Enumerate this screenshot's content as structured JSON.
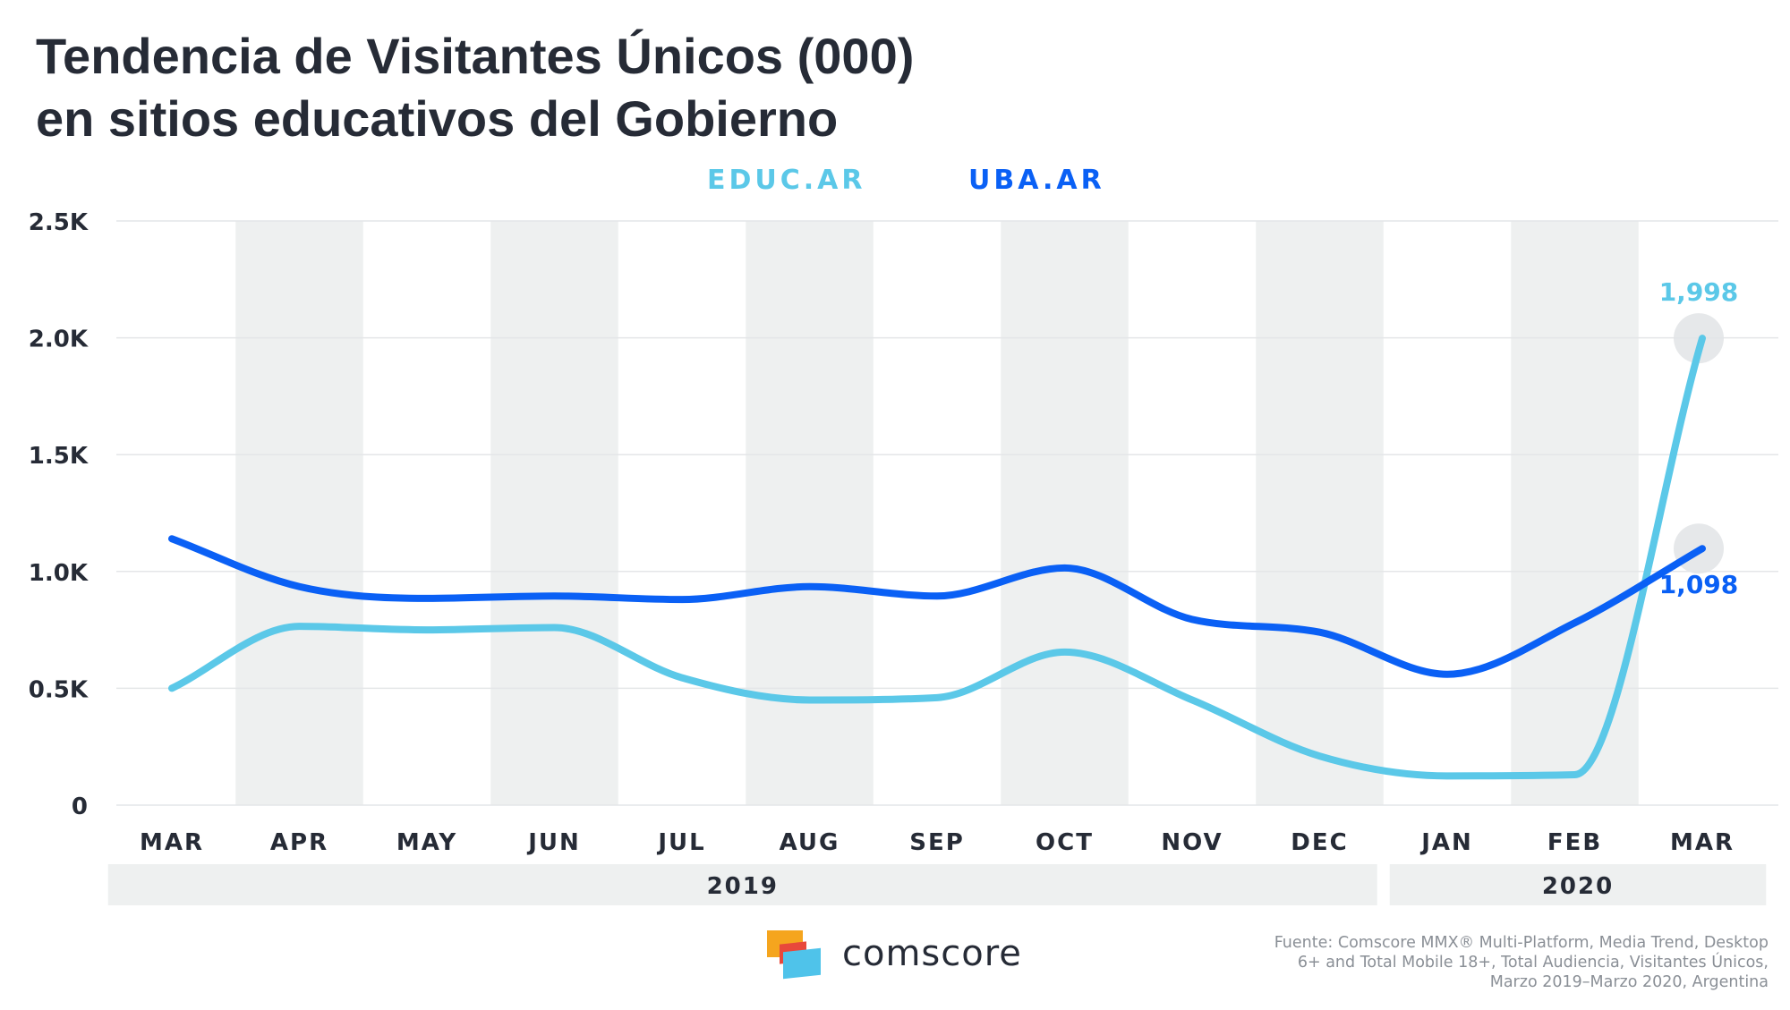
{
  "title": {
    "line1": "Tendencia de Visitantes Únicos (000)",
    "line2": "en sitios educativos del Gobierno"
  },
  "brand": {
    "name": "comscore"
  },
  "source": "Fuente: Comscore MMX® Multi-Platform, Media Trend, Desktop 6+ and Total Mobile 18+, Total Audiencia, Visitantes Únicos, Marzo 2019–Marzo 2020, Argentina",
  "colors": {
    "educ": "#5bc8e8",
    "uba": "#0a60f5",
    "band": "#eef0f0",
    "grid": "#e4e6e8",
    "text": "#262b36"
  },
  "chart_data": {
    "type": "line",
    "categories": [
      "MAR",
      "APR",
      "MAY",
      "JUN",
      "JUL",
      "AUG",
      "SEP",
      "OCT",
      "NOV",
      "DEC",
      "JAN",
      "FEB",
      "MAR"
    ],
    "year_groups": [
      {
        "label": "2019",
        "from": 0,
        "to": 9
      },
      {
        "label": "2020",
        "from": 10,
        "to": 12
      }
    ],
    "ylim": [
      0,
      2500
    ],
    "y_ticks": [
      {
        "value": 0,
        "label": "0"
      },
      {
        "value": 500,
        "label": "0.5K"
      },
      {
        "value": 1000,
        "label": "1.0K"
      },
      {
        "value": 1500,
        "label": "1.5K"
      },
      {
        "value": 2000,
        "label": "2.0K"
      },
      {
        "value": 2500,
        "label": "2.5K"
      }
    ],
    "legend_position": "top-center",
    "grid": true,
    "series": [
      {
        "name": "EDUC.AR",
        "color": "#5bc8e8",
        "values": [
          500,
          765,
          750,
          760,
          545,
          450,
          460,
          655,
          450,
          210,
          125,
          130,
          1998
        ],
        "end_label": "1,998"
      },
      {
        "name": "UBA.AR",
        "color": "#0a60f5",
        "values": [
          1140,
          935,
          885,
          895,
          880,
          935,
          895,
          1015,
          795,
          740,
          560,
          780,
          1098
        ],
        "end_label": "1,098"
      }
    ]
  }
}
